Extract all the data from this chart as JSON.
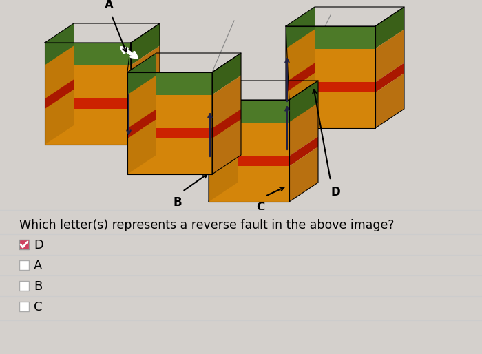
{
  "bg_color": "#d4d0cc",
  "diagram_bg": "#d4d0cc",
  "colors": {
    "green": "#4d7a28",
    "green_top": "#3d6820",
    "green_side": "#3a6018",
    "orange": "#d4850a",
    "orange_top": "#c07808",
    "orange_side": "#b87010",
    "red": "#cc2200",
    "red_top": "#aa1800",
    "red_side": "#aa1800"
  },
  "question_text": "Which letter(s) represents a reverse fault in the above image?",
  "question_fontsize": 12.5,
  "answer_options": [
    "D",
    "A",
    "B",
    "C"
  ],
  "checked_option": "D",
  "option_fontsize": 13
}
